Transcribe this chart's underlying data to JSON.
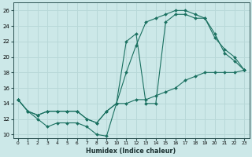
{
  "xlabel": "Humidex (Indice chaleur)",
  "background_color": "#cce8e8",
  "grid_color": "#b8d8d8",
  "line_color": "#1a7060",
  "xlim": [
    -0.5,
    23.5
  ],
  "ylim": [
    9.5,
    27
  ],
  "yticks": [
    10,
    12,
    14,
    16,
    18,
    20,
    22,
    24,
    26
  ],
  "xticks": [
    0,
    1,
    2,
    3,
    4,
    5,
    6,
    7,
    8,
    9,
    10,
    11,
    12,
    13,
    14,
    15,
    16,
    17,
    18,
    19,
    20,
    21,
    22,
    23
  ],
  "lines": [
    {
      "x": [
        0,
        1,
        2,
        3,
        4,
        5,
        6,
        7,
        8,
        9,
        10,
        11,
        12,
        13,
        14,
        15,
        16,
        17,
        18,
        19,
        20,
        21,
        22,
        23
      ],
      "y": [
        14.5,
        13,
        12.5,
        13,
        13,
        13,
        13,
        12,
        11.5,
        13,
        14,
        14,
        14.5,
        14.5,
        15,
        15.5,
        16,
        17,
        17.5,
        18,
        18,
        18,
        18,
        18.3
      ]
    },
    {
      "x": [
        0,
        1,
        2,
        3,
        4,
        5,
        6,
        7,
        8,
        9,
        10,
        11,
        12,
        13,
        14,
        15,
        16,
        17,
        18,
        19,
        20,
        21,
        22,
        23
      ],
      "y": [
        14.5,
        13,
        12.5,
        13,
        13,
        13,
        13,
        12,
        11.5,
        13,
        14,
        18,
        21.5,
        24.5,
        25,
        25.5,
        26,
        26,
        25.5,
        25,
        22.5,
        21,
        20,
        18.3
      ]
    },
    {
      "x": [
        0,
        1,
        2,
        3,
        4,
        5,
        6,
        7,
        8,
        9,
        10,
        11,
        12,
        13,
        14,
        15,
        16,
        17,
        18,
        19,
        20,
        21,
        22,
        23
      ],
      "y": [
        14.5,
        13,
        12,
        11,
        11.5,
        11.5,
        11.5,
        11,
        10,
        9.8,
        14,
        22,
        23,
        14,
        14,
        24.5,
        25.5,
        25.5,
        25,
        25,
        23,
        20.5,
        19.5,
        18.3
      ]
    }
  ]
}
